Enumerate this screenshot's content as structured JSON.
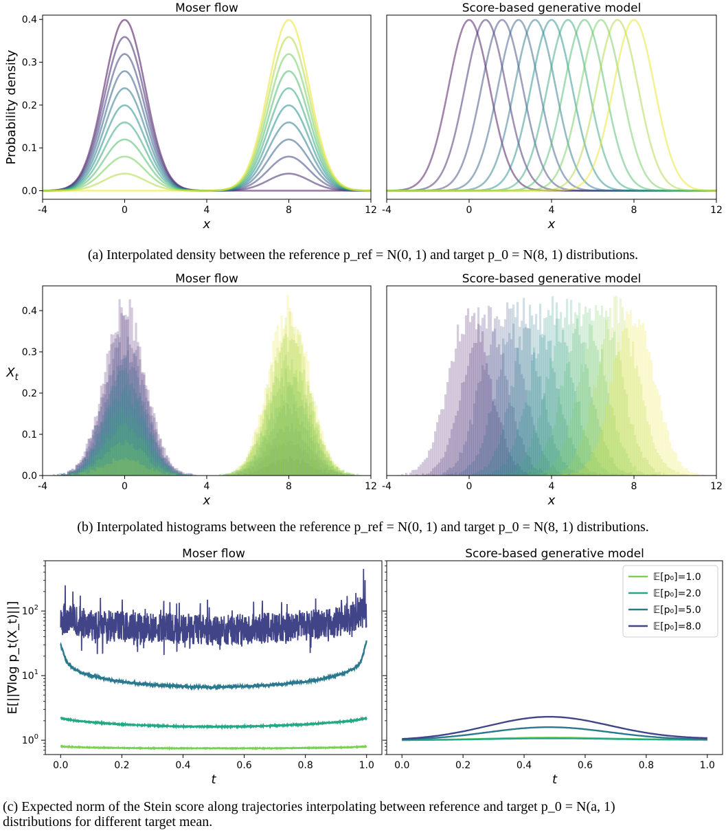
{
  "captions": {
    "a": "(a) Interpolated density between the reference p_ref = N(0, 1) and target p_0 = N(8, 1) distributions.",
    "b": "(b) Interpolated histograms between the reference p_ref = N(0, 1) and target p_0 = N(8, 1) distributions.",
    "c1": "(c) Expected norm of the Stein score along trajectories interpolating between reference and target p_0 = N(a, 1)",
    "c2": "distributions for different target mean."
  },
  "chart_data": [
    {
      "id": "a-left",
      "type": "line",
      "title": "Moser flow",
      "xlabel": "x",
      "ylabel": "Probability density",
      "xlim": [
        -4,
        12
      ],
      "ylim": [
        -0.02,
        0.41
      ],
      "xticks": [
        -4,
        0,
        4,
        8,
        12
      ],
      "xtick_labels": [
        "-4",
        "0",
        "4",
        "8",
        "12"
      ],
      "yticks": [
        0.0,
        0.1,
        0.2,
        0.3,
        0.4
      ],
      "ytick_labels": [
        "0.0",
        "0.1",
        "0.2",
        "0.3",
        "0.4"
      ],
      "mixture": {
        "means": [
          0,
          8
        ],
        "sd": 1,
        "weights_of_mean8": [
          0.0,
          0.1,
          0.2,
          0.3,
          0.4,
          0.5,
          0.6,
          0.7,
          0.8,
          0.9,
          1.0
        ]
      },
      "colormap": "viridis",
      "line_alpha": 0.55
    },
    {
      "id": "a-right",
      "type": "line",
      "title": "Score-based generative model",
      "xlabel": "x",
      "xlim": [
        -4,
        12
      ],
      "ylim": [
        -0.02,
        0.41
      ],
      "xticks": [
        -4,
        0,
        4,
        8,
        12
      ],
      "xtick_labels": [
        "-4",
        "0",
        "4",
        "8",
        "12"
      ],
      "shifting_gaussian": {
        "means": [
          0.0,
          0.8,
          1.6,
          2.4,
          3.2,
          4.0,
          4.8,
          5.6,
          6.4,
          7.2,
          8.0
        ],
        "sd": 1
      },
      "colormap": "viridis",
      "line_alpha": 0.5
    },
    {
      "id": "b-left",
      "type": "bar",
      "title": "Moser flow",
      "xlabel": "x",
      "ylabel": "X_t",
      "xlim": [
        -4,
        12
      ],
      "ylim": [
        0,
        0.46
      ],
      "xticks": [
        -4,
        0,
        4,
        8,
        12
      ],
      "xtick_labels": [
        "-4",
        "0",
        "4",
        "8",
        "12"
      ],
      "yticks": [
        0.0,
        0.1,
        0.2,
        0.3,
        0.4
      ],
      "ytick_labels": [
        "0.0",
        "0.1",
        "0.2",
        "0.3",
        "0.4"
      ],
      "histogram": {
        "means": [
          0,
          8
        ],
        "sd": 1,
        "bin_width": 0.1,
        "weights_of_mean8": [
          0.0,
          0.1,
          0.2,
          0.3,
          0.4,
          0.5,
          0.6,
          0.7,
          0.8,
          0.9,
          1.0
        ]
      },
      "colormap": "viridis",
      "bar_alpha": 0.22
    },
    {
      "id": "b-right",
      "type": "bar",
      "title": "Score-based generative model",
      "xlabel": "x",
      "xlim": [
        -4,
        12
      ],
      "ylim": [
        0,
        0.46
      ],
      "xticks": [
        -4,
        0,
        4,
        8,
        12
      ],
      "xtick_labels": [
        "-4",
        "0",
        "4",
        "8",
        "12"
      ],
      "histogram": {
        "means": [
          0.0,
          0.8,
          1.6,
          2.4,
          3.2,
          4.0,
          4.8,
          5.6,
          6.4,
          7.2,
          8.0
        ],
        "sd": 1,
        "bin_width": 0.1
      },
      "colormap": "viridis",
      "bar_alpha": 0.22
    },
    {
      "id": "c-left",
      "type": "line",
      "title": "Moser flow",
      "xlabel": "t",
      "ylabel": "E[||∇log p_t(X_t)||]",
      "xlim": [
        -0.05,
        1.05
      ],
      "yscale": "log",
      "ylim": [
        0.6,
        600
      ],
      "xticks": [
        0.0,
        0.2,
        0.4,
        0.6,
        0.8,
        1.0
      ],
      "xtick_labels": [
        "0.0",
        "0.2",
        "0.4",
        "0.6",
        "0.8",
        "1.0"
      ],
      "yticks": [
        1,
        10,
        100
      ],
      "ytick_base": "10",
      "ytick_exps": [
        "0",
        "1",
        "2"
      ],
      "series": [
        {
          "color": "#7ad151",
          "t": [
            0.0,
            0.05,
            0.1,
            0.2,
            0.3,
            0.4,
            0.5,
            0.6,
            0.7,
            0.8,
            0.9,
            0.95,
            1.0
          ],
          "y": [
            0.8,
            0.78,
            0.77,
            0.76,
            0.75,
            0.75,
            0.75,
            0.75,
            0.75,
            0.76,
            0.77,
            0.78,
            0.8
          ],
          "noise": 0.01
        },
        {
          "color": "#22a884",
          "t": [
            0.0,
            0.02,
            0.05,
            0.1,
            0.2,
            0.3,
            0.4,
            0.5,
            0.6,
            0.7,
            0.8,
            0.9,
            0.95,
            0.98,
            1.0
          ],
          "y": [
            2.2,
            2.1,
            2.0,
            1.9,
            1.75,
            1.68,
            1.63,
            1.62,
            1.63,
            1.68,
            1.75,
            1.9,
            2.0,
            2.1,
            2.2
          ],
          "noise": 0.015
        },
        {
          "color": "#2a788e",
          "t": [
            0.0,
            0.01,
            0.02,
            0.04,
            0.07,
            0.1,
            0.15,
            0.2,
            0.3,
            0.4,
            0.5,
            0.6,
            0.7,
            0.8,
            0.85,
            0.9,
            0.93,
            0.96,
            0.98,
            0.99,
            1.0
          ],
          "y": [
            30,
            22,
            16,
            13,
            11,
            10,
            8.8,
            8.0,
            7.2,
            6.8,
            6.6,
            6.8,
            7.2,
            8.0,
            8.8,
            10,
            11,
            13,
            16,
            22,
            35
          ],
          "noise": 0.04
        },
        {
          "color": "#414487",
          "t": [
            0.0,
            0.02,
            0.1,
            0.3,
            0.5,
            0.7,
            0.9,
            0.98,
            1.0
          ],
          "y": [
            70,
            80,
            60,
            55,
            50,
            55,
            65,
            90,
            90
          ],
          "noise": 0.55,
          "spikes": [
            [
              0.015,
              250
            ],
            [
              0.04,
              200
            ],
            [
              0.13,
              160
            ],
            [
              0.48,
              150
            ],
            [
              0.965,
              190
            ],
            [
              0.99,
              450
            ],
            [
              0.995,
              300
            ]
          ]
        }
      ]
    },
    {
      "id": "c-right",
      "type": "line",
      "title": "Score-based generative model",
      "xlabel": "t",
      "xlim": [
        -0.05,
        1.05
      ],
      "yscale": "log",
      "ylim": [
        0.6,
        600
      ],
      "xticks": [
        0.0,
        0.2,
        0.4,
        0.6,
        0.8,
        1.0
      ],
      "xtick_labels": [
        "0.0",
        "0.2",
        "0.4",
        "0.6",
        "0.8",
        "1.0"
      ],
      "legend_position": "upper right",
      "series": [
        {
          "name": "𝔼[p₀]=1.0",
          "color": "#7ad151",
          "peak": 1.09
        },
        {
          "name": "𝔼[p₀]=2.0",
          "color": "#22a884",
          "peak": 1.06
        },
        {
          "name": "𝔼[p₀]=5.0",
          "color": "#2a788e",
          "peak": 1.58
        },
        {
          "name": "𝔼[p₀]=8.0",
          "color": "#414487",
          "peak": 2.25
        }
      ]
    }
  ]
}
